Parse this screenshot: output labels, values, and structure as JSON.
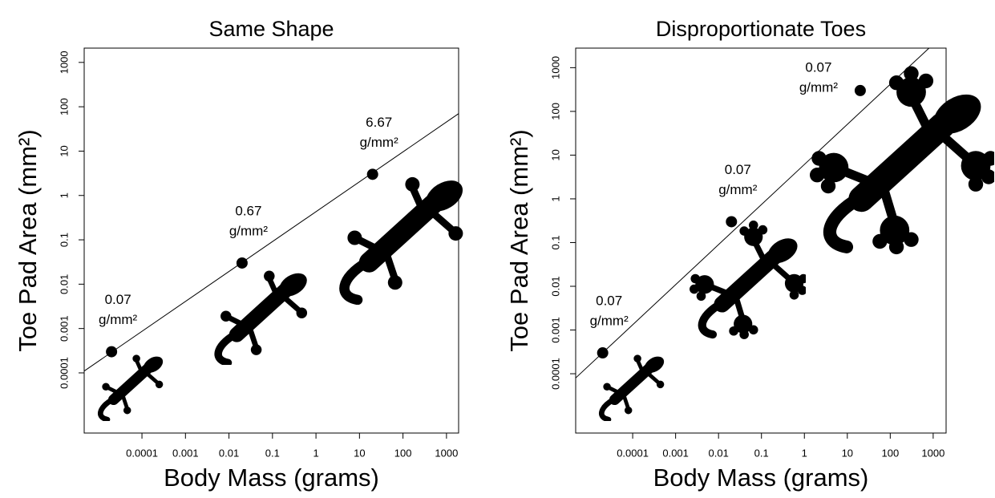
{
  "chart_data": [
    {
      "type": "scatter",
      "title": "Same Shape",
      "x_label": "Body Mass (grams)",
      "y_label": "Toe Pad Area (mm²)",
      "x_scale": "log",
      "y_scale": "log",
      "xlim": [
        4.7e-06,
        1900
      ],
      "ylim": [
        4.4e-06,
        2100
      ],
      "xticks": [
        0.0001,
        0.001,
        0.01,
        0.1,
        1,
        10,
        100,
        1000
      ],
      "yticks": [
        0.0001,
        0.001,
        0.01,
        0.1,
        1,
        10,
        100,
        1000
      ],
      "x": [
        2e-05,
        0.02,
        20
      ],
      "y": [
        0.0003,
        0.03,
        3
      ],
      "color": "#000000",
      "point_labels": [
        [
          "0.07",
          "g/mm²"
        ],
        [
          "0.67",
          "g/mm²"
        ],
        [
          "6.67",
          "g/mm²"
        ]
      ],
      "fit_line": {
        "x": [
          4.7e-06,
          1900
        ],
        "y": [
          0.00011,
          70
        ]
      }
    },
    {
      "type": "scatter",
      "title": "Disproportionate Toes",
      "x_label": "Body Mass (grams)",
      "y_label": "Toe Pad Area (mm²)",
      "x_scale": "log",
      "y_scale": "log",
      "xlim": [
        4.7e-06,
        2000
      ],
      "ylim": [
        4.4e-06,
        2800
      ],
      "xticks": [
        0.0001,
        0.001,
        0.01,
        0.1,
        1,
        10,
        100,
        1000
      ],
      "yticks": [
        0.0001,
        0.001,
        0.01,
        0.1,
        1,
        10,
        100,
        1000
      ],
      "x": [
        2e-05,
        0.02,
        20
      ],
      "y": [
        0.0003,
        0.3,
        300
      ],
      "color": "#000000",
      "point_labels": [
        [
          "0.07",
          "g/mm²"
        ],
        [
          "0.07",
          "g/mm²"
        ],
        [
          "0.07",
          "g/mm²"
        ]
      ],
      "fit_line": {
        "x": [
          4.7e-06,
          800
        ],
        "y": [
          8e-05,
          2800
        ]
      }
    }
  ]
}
